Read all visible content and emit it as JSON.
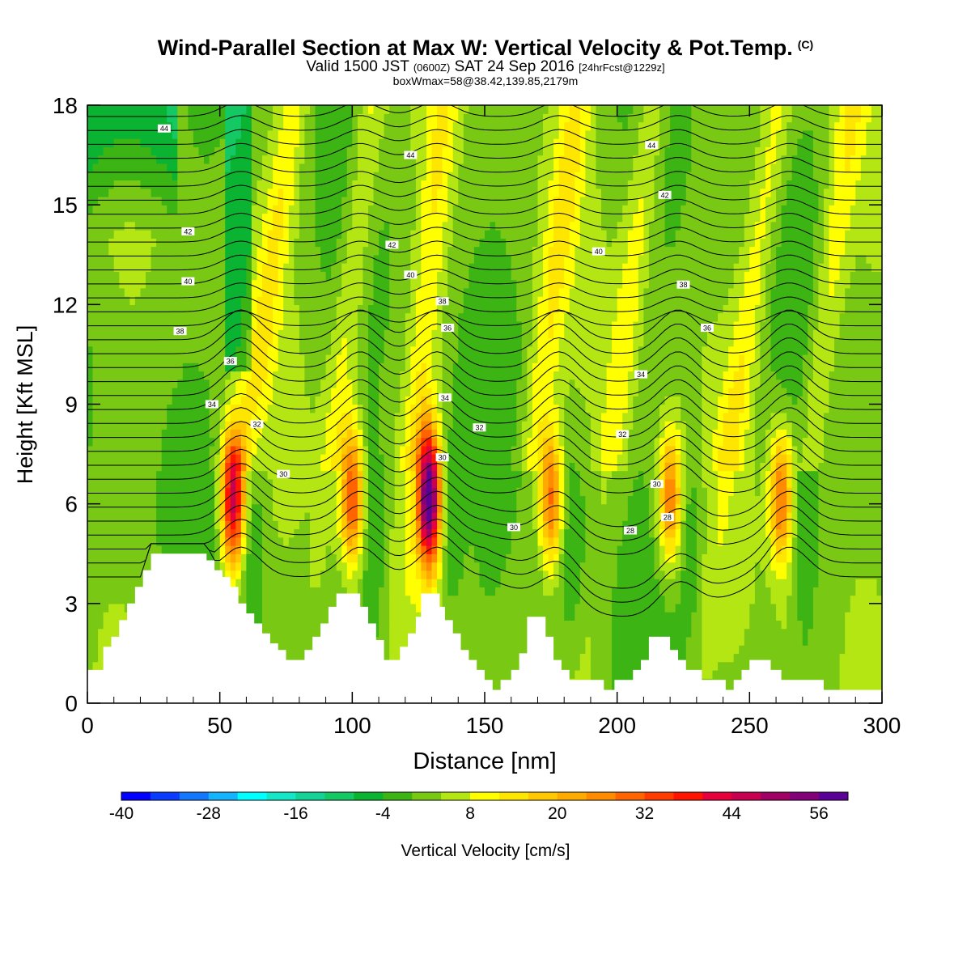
{
  "title": {
    "main": "Wind-Parallel Section at Max W: Vertical Velocity & Pot.Temp.",
    "copyright_mark": "(C)",
    "valid_prefix": "Valid 1500 JST",
    "valid_z": "(0600Z)",
    "valid_date": "SAT 24 Sep 2016",
    "forecast": "[24hrFcst@1229z]",
    "box_line": "boxWmax=58@38.42,139.85,2179m"
  },
  "chart_data": {
    "type": "heatmap",
    "xlabel": "Distance [nm]",
    "ylabel": "Height [Kft MSL]",
    "xlim": [
      0,
      300
    ],
    "ylim": [
      0,
      18
    ],
    "x_ticks": [
      0,
      50,
      100,
      150,
      200,
      250,
      300
    ],
    "y_ticks": [
      0,
      3,
      6,
      9,
      12,
      15,
      18
    ],
    "colorbar": {
      "label": "Vertical Velocity [cm/s]",
      "tick_labels": [
        -40,
        -28,
        -16,
        -4,
        8,
        20,
        32,
        44,
        56
      ],
      "range": [
        -40,
        60
      ],
      "colors": [
        "#0000ff",
        "#0a3cff",
        "#1478ff",
        "#14b4ff",
        "#00ffff",
        "#14e6c8",
        "#14d296",
        "#14c864",
        "#0ab432",
        "#3cb414",
        "#78c814",
        "#b4e614",
        "#ffff00",
        "#ffe600",
        "#ffc800",
        "#ffaa00",
        "#ff8c00",
        "#ff6400",
        "#ff3c00",
        "#ff1400",
        "#e6003c",
        "#c80050",
        "#a00064",
        "#820078",
        "#5a0096"
      ]
    },
    "updraft_cores": [
      {
        "x": 55,
        "peak": 44
      },
      {
        "x": 100,
        "peak": 32
      },
      {
        "x": 129,
        "peak": 58
      },
      {
        "x": 175,
        "peak": 28
      },
      {
        "x": 220,
        "peak": 26
      },
      {
        "x": 262,
        "peak": 28
      }
    ],
    "terrain": [
      [
        0,
        1.0
      ],
      [
        6,
        1.0
      ],
      [
        6,
        1.7
      ],
      [
        9,
        1.7
      ],
      [
        9,
        2.0
      ],
      [
        12,
        2.0
      ],
      [
        12,
        2.5
      ],
      [
        15,
        2.5
      ],
      [
        15,
        3.0
      ],
      [
        18,
        3.0
      ],
      [
        18,
        3.5
      ],
      [
        21,
        3.5
      ],
      [
        21,
        4.0
      ],
      [
        24,
        4.0
      ],
      [
        24,
        4.5
      ],
      [
        45,
        4.5
      ],
      [
        45,
        4.3
      ],
      [
        48,
        4.3
      ],
      [
        48,
        4.0
      ],
      [
        51,
        4.0
      ],
      [
        51,
        3.8
      ],
      [
        54,
        3.8
      ],
      [
        54,
        3.5
      ],
      [
        57,
        3.5
      ],
      [
        57,
        3.0
      ],
      [
        60,
        3.0
      ],
      [
        60,
        2.7
      ],
      [
        63,
        2.7
      ],
      [
        63,
        2.4
      ],
      [
        66,
        2.4
      ],
      [
        66,
        2.1
      ],
      [
        69,
        2.1
      ],
      [
        69,
        1.8
      ],
      [
        72,
        1.8
      ],
      [
        72,
        1.6
      ],
      [
        75,
        1.6
      ],
      [
        75,
        1.3
      ],
      [
        82,
        1.3
      ],
      [
        82,
        1.6
      ],
      [
        85,
        1.6
      ],
      [
        85,
        2.0
      ],
      [
        88,
        2.0
      ],
      [
        88,
        2.4
      ],
      [
        91,
        2.4
      ],
      [
        91,
        2.9
      ],
      [
        94,
        2.9
      ],
      [
        94,
        3.3
      ],
      [
        103,
        3.3
      ],
      [
        103,
        2.9
      ],
      [
        106,
        2.9
      ],
      [
        106,
        2.4
      ],
      [
        109,
        2.4
      ],
      [
        109,
        1.9
      ],
      [
        112,
        1.9
      ],
      [
        112,
        1.3
      ],
      [
        118,
        1.3
      ],
      [
        118,
        1.7
      ],
      [
        121,
        1.7
      ],
      [
        121,
        2.1
      ],
      [
        124,
        2.1
      ],
      [
        124,
        2.6
      ],
      [
        126,
        2.6
      ],
      [
        126,
        3.3
      ],
      [
        133,
        3.3
      ],
      [
        133,
        2.9
      ],
      [
        135,
        2.9
      ],
      [
        135,
        2.5
      ],
      [
        138,
        2.5
      ],
      [
        138,
        2.1
      ],
      [
        141,
        2.1
      ],
      [
        141,
        1.6
      ],
      [
        144,
        1.6
      ],
      [
        144,
        1.3
      ],
      [
        147,
        1.3
      ],
      [
        147,
        1.0
      ],
      [
        150,
        1.0
      ],
      [
        150,
        0.7
      ],
      [
        153,
        0.7
      ],
      [
        153,
        0.4
      ],
      [
        156,
        0.4
      ],
      [
        156,
        0.7
      ],
      [
        160,
        0.7
      ],
      [
        160,
        1.0
      ],
      [
        163,
        1.0
      ],
      [
        163,
        1.5
      ],
      [
        166,
        1.5
      ],
      [
        166,
        2.6
      ],
      [
        173,
        2.6
      ],
      [
        173,
        2.0
      ],
      [
        176,
        2.0
      ],
      [
        176,
        1.3
      ],
      [
        179,
        1.3
      ],
      [
        179,
        1.0
      ],
      [
        182,
        1.0
      ],
      [
        182,
        0.7
      ],
      [
        195,
        0.7
      ],
      [
        195,
        0.4
      ],
      [
        199,
        0.4
      ],
      [
        199,
        0.7
      ],
      [
        206,
        0.7
      ],
      [
        206,
        1.0
      ],
      [
        209,
        1.0
      ],
      [
        209,
        1.3
      ],
      [
        212,
        1.3
      ],
      [
        212,
        2.0
      ],
      [
        220,
        2.0
      ],
      [
        220,
        1.6
      ],
      [
        223,
        1.6
      ],
      [
        223,
        1.3
      ],
      [
        226,
        1.3
      ],
      [
        226,
        1.0
      ],
      [
        232,
        1.0
      ],
      [
        232,
        0.7
      ],
      [
        241,
        0.7
      ],
      [
        241,
        0.4
      ],
      [
        244,
        0.4
      ],
      [
        244,
        0.7
      ],
      [
        247,
        0.7
      ],
      [
        247,
        1.0
      ],
      [
        250,
        1.0
      ],
      [
        250,
        1.3
      ],
      [
        258,
        1.3
      ],
      [
        258,
        1.0
      ],
      [
        262,
        1.0
      ],
      [
        262,
        0.7
      ],
      [
        278,
        0.7
      ],
      [
        278,
        0.4
      ],
      [
        300,
        0.4
      ],
      [
        300,
        0
      ]
    ],
    "theta_labels": [
      {
        "x": 29,
        "y": 17.3,
        "t": "44"
      },
      {
        "x": 122,
        "y": 16.5,
        "t": "44"
      },
      {
        "x": 213,
        "y": 16.8,
        "t": "44"
      },
      {
        "x": 218,
        "y": 15.3,
        "t": "42"
      },
      {
        "x": 38,
        "y": 14.2,
        "t": "42"
      },
      {
        "x": 115,
        "y": 13.8,
        "t": "42"
      },
      {
        "x": 193,
        "y": 13.6,
        "t": "40"
      },
      {
        "x": 38,
        "y": 12.7,
        "t": "40"
      },
      {
        "x": 122,
        "y": 12.9,
        "t": "40"
      },
      {
        "x": 225,
        "y": 12.6,
        "t": "38"
      },
      {
        "x": 134,
        "y": 12.1,
        "t": "38"
      },
      {
        "x": 35,
        "y": 11.2,
        "t": "38"
      },
      {
        "x": 136,
        "y": 11.3,
        "t": "36"
      },
      {
        "x": 234,
        "y": 11.3,
        "t": "36"
      },
      {
        "x": 54,
        "y": 10.3,
        "t": "36"
      },
      {
        "x": 209,
        "y": 9.9,
        "t": "34"
      },
      {
        "x": 47,
        "y": 9.0,
        "t": "34"
      },
      {
        "x": 135,
        "y": 9.2,
        "t": "34"
      },
      {
        "x": 148,
        "y": 8.3,
        "t": "32"
      },
      {
        "x": 64,
        "y": 8.4,
        "t": "32"
      },
      {
        "x": 202,
        "y": 8.1,
        "t": "32"
      },
      {
        "x": 74,
        "y": 6.9,
        "t": "30"
      },
      {
        "x": 134,
        "y": 7.4,
        "t": "30"
      },
      {
        "x": 215,
        "y": 6.6,
        "t": "30"
      },
      {
        "x": 161,
        "y": 5.3,
        "t": "30"
      },
      {
        "x": 219,
        "y": 5.6,
        "t": "28"
      },
      {
        "x": 205,
        "y": 5.2,
        "t": "28"
      }
    ]
  }
}
